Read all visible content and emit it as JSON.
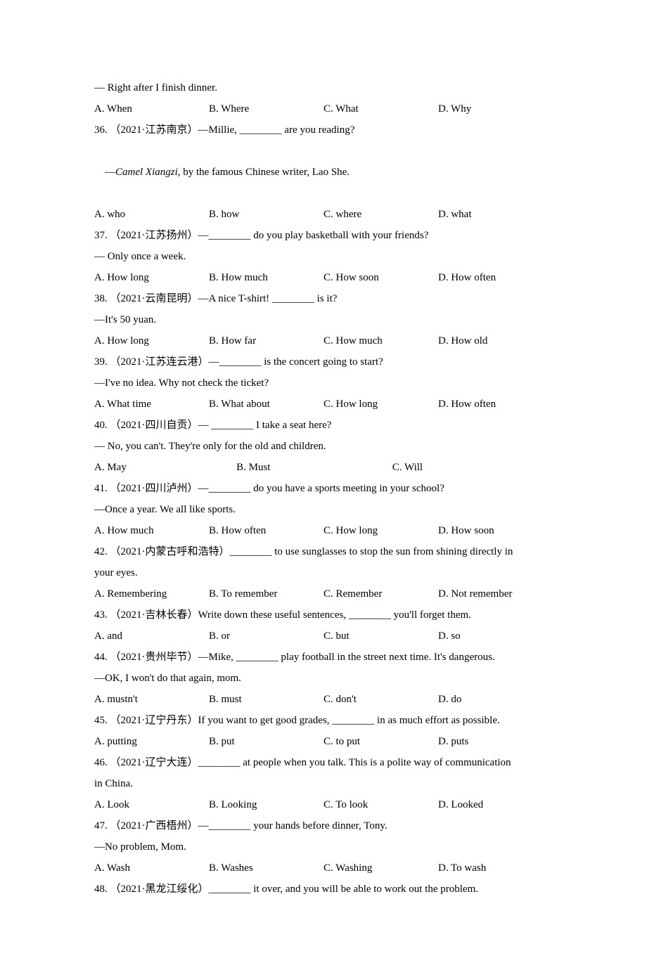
{
  "q35": {
    "response": "— Right after I finish dinner.",
    "opts": [
      "A. When",
      "B. Where",
      "C. What",
      "D. Why"
    ]
  },
  "q36": {
    "stem": "36. （2021·江苏南京）—Millie, ________ are you reading?",
    "response_pre": "—",
    "response_ital": "Camel Xiangzi",
    "response_post": ", by the famous Chinese writer, Lao She.",
    "opts": [
      "A. who",
      "B. how",
      "C. where",
      "D. what"
    ]
  },
  "q37": {
    "stem": "37. （2021·江苏扬州）—________ do you play basketball with your friends?",
    "response": "— Only once a week.",
    "opts": [
      "A. How long",
      "B. How much",
      "C. How soon",
      "D. How often"
    ]
  },
  "q38": {
    "stem": "38. （2021·云南昆明）—A nice T-shirt! ________ is it?",
    "response": "—It's 50 yuan.",
    "opts": [
      "A. How long",
      "B. How far",
      "C. How much",
      "D. How old"
    ]
  },
  "q39": {
    "stem": "39. （2021·江苏连云港）—________ is the concert going to start?",
    "response": "—I've no idea. Why not check the ticket?",
    "opts": [
      "A. What time",
      "B. What about",
      "C. How long",
      "D. How often"
    ]
  },
  "q40": {
    "stem": "40. （2021·四川自贡）— ________ I take a seat here?",
    "response": "— No, you can't. They're only for the old and children.",
    "opts": [
      "A. May",
      "B. Must",
      "C. Will"
    ]
  },
  "q41": {
    "stem": "41. （2021·四川泸州）—________ do you have a sports meeting in your school?",
    "response": "—Once a year. We all like sports.",
    "opts": [
      "A. How much",
      "B. How often",
      "C. How long",
      "D. How soon"
    ]
  },
  "q42": {
    "stem1": "42. （2021·内蒙古呼和浩特）________ to use sunglasses to stop the sun from shining directly in",
    "stem2": "your eyes.",
    "opts": [
      "A. Remembering",
      "B. To remember",
      "C. Remember",
      "D. Not remember"
    ]
  },
  "q43": {
    "stem": "43. （2021·吉林长春）Write down these useful sentences, ________ you'll forget them.",
    "opts": [
      "A. and",
      "B. or",
      "C. but",
      "D. so"
    ]
  },
  "q44": {
    "stem": "44. （2021·贵州毕节）—Mike, ________ play football in the street next time. It's dangerous.",
    "response": "—OK, I won't do that again, mom.",
    "opts": [
      "A. mustn't",
      "B. must",
      "C. don't",
      "D. do"
    ]
  },
  "q45": {
    "stem": "45. （2021·辽宁丹东）If you want to get good grades, ________ in as much effort as possible.",
    "opts": [
      "A. putting",
      "B. put",
      "C. to put",
      "D. puts"
    ]
  },
  "q46": {
    "stem1": "46. （2021·辽宁大连）________ at people when you talk. This is a polite way of communication",
    "stem2": "in China.",
    "opts": [
      "A. Look",
      "B. Looking",
      "C. To look",
      "D. Looked"
    ]
  },
  "q47": {
    "stem": "47. （2021·广西梧州）—________ your hands before dinner, Tony.",
    "response": "—No problem, Mom.",
    "opts": [
      "A. Wash",
      "B. Washes",
      "C. Washing",
      "D. To wash"
    ]
  },
  "q48": {
    "stem": "48. （2021·黑龙江绥化）________ it over, and you will be able to work out the problem."
  }
}
